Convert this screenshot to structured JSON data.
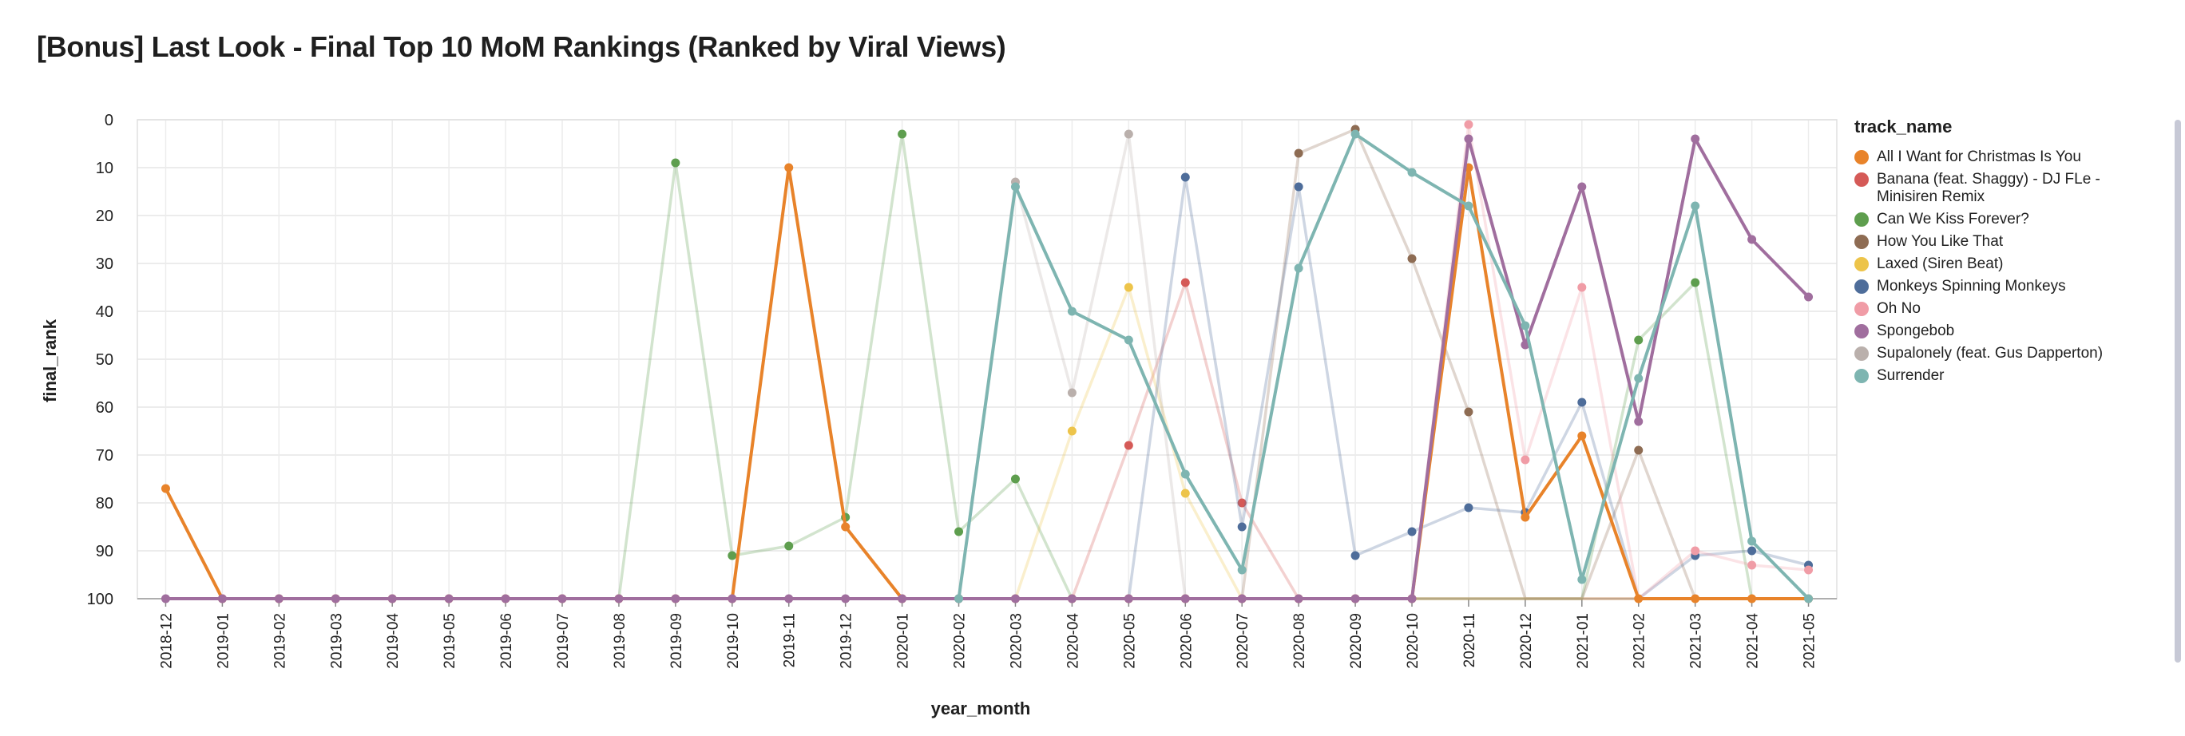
{
  "title": "[Bonus] Last Look - Final Top 10 MoM Rankings (Ranked by Viral Views)",
  "legend_title": "track_name",
  "colors": {
    "All I Want for Christmas Is You": "#E8832A",
    "Banana (feat. Shaggy) - DJ FLe - Minisiren Remix": "#D55A57",
    "Can We Kiss Forever?": "#5E9E4E",
    "How You Like That": "#8E6C53",
    "Laxed (Siren Beat)": "#EDC44A",
    "Monkeys Spinning Monkeys": "#4E6D9A",
    "Oh No": "#F09CA6",
    "Spongebob": "#A06E9E",
    "Supalonely (feat. Gus Dapperton)": "#BAB0AC",
    "Surrender": "#7EB5B1"
  },
  "chart_data": {
    "type": "line",
    "xlabel": "year_month",
    "ylabel": "final_rank",
    "ylim": [
      0,
      100
    ],
    "y_reversed": true,
    "y_ticks": [
      "0",
      "10",
      "20",
      "30",
      "40",
      "50",
      "60",
      "70",
      "80",
      "90",
      "100"
    ],
    "grid": true,
    "legend_position": "right",
    "categories": [
      "2018-12",
      "2019-01",
      "2019-02",
      "2019-03",
      "2019-04",
      "2019-05",
      "2019-06",
      "2019-07",
      "2019-08",
      "2019-09",
      "2019-10",
      "2019-11",
      "2019-12",
      "2020-01",
      "2020-02",
      "2020-03",
      "2020-04",
      "2020-05",
      "2020-06",
      "2020-07",
      "2020-08",
      "2020-09",
      "2020-10",
      "2020-11",
      "2020-12",
      "2021-01",
      "2021-02",
      "2021-03",
      "2021-04",
      "2021-05"
    ],
    "series": [
      {
        "name": "All I Want for Christmas Is You",
        "highlight": true,
        "values": [
          77,
          100,
          100,
          100,
          100,
          100,
          100,
          100,
          100,
          100,
          100,
          10,
          85,
          100,
          100,
          100,
          100,
          100,
          100,
          100,
          100,
          100,
          100,
          10,
          83,
          66,
          100,
          100,
          100,
          100
        ]
      },
      {
        "name": "Banana (feat. Shaggy) - DJ FLe - Minisiren Remix",
        "highlight": false,
        "values": [
          null,
          null,
          null,
          null,
          null,
          null,
          null,
          null,
          null,
          null,
          null,
          null,
          null,
          null,
          null,
          null,
          100,
          68,
          34,
          80,
          100,
          100,
          100,
          100,
          100,
          100,
          100,
          100,
          100,
          100
        ]
      },
      {
        "name": "Can We Kiss Forever?",
        "highlight": false,
        "values": [
          null,
          null,
          null,
          null,
          null,
          null,
          null,
          null,
          100,
          9,
          91,
          89,
          83,
          3,
          86,
          75,
          100,
          100,
          100,
          100,
          100,
          100,
          100,
          100,
          100,
          100,
          46,
          34,
          100,
          100
        ]
      },
      {
        "name": "How You Like That",
        "highlight": false,
        "values": [
          null,
          null,
          null,
          null,
          null,
          null,
          null,
          null,
          null,
          null,
          null,
          null,
          null,
          null,
          null,
          null,
          null,
          null,
          null,
          100,
          7,
          2,
          29,
          61,
          100,
          100,
          69,
          100,
          100,
          100
        ]
      },
      {
        "name": "Laxed (Siren Beat)",
        "highlight": false,
        "values": [
          null,
          null,
          null,
          null,
          null,
          null,
          null,
          null,
          null,
          null,
          null,
          null,
          null,
          null,
          null,
          100,
          65,
          35,
          78,
          100,
          100,
          100,
          100,
          100,
          100,
          100,
          100,
          100,
          100,
          100
        ]
      },
      {
        "name": "Monkeys Spinning Monkeys",
        "highlight": false,
        "values": [
          null,
          null,
          null,
          null,
          null,
          null,
          null,
          null,
          null,
          null,
          null,
          null,
          null,
          null,
          null,
          null,
          null,
          100,
          12,
          85,
          14,
          91,
          86,
          81,
          82,
          59,
          100,
          91,
          90,
          93
        ]
      },
      {
        "name": "Oh No",
        "highlight": false,
        "values": [
          null,
          null,
          null,
          null,
          null,
          null,
          null,
          null,
          null,
          null,
          null,
          null,
          null,
          null,
          null,
          null,
          null,
          null,
          null,
          null,
          100,
          100,
          100,
          1,
          71,
          35,
          100,
          90,
          93,
          94
        ]
      },
      {
        "name": "Spongebob",
        "highlight": true,
        "values": [
          100,
          100,
          100,
          100,
          100,
          100,
          100,
          100,
          100,
          100,
          100,
          100,
          100,
          100,
          100,
          100,
          100,
          100,
          100,
          100,
          100,
          100,
          100,
          4,
          47,
          14,
          63,
          4,
          25,
          37
        ]
      },
      {
        "name": "Supalonely (feat. Gus Dapperton)",
        "highlight": false,
        "values": [
          null,
          null,
          null,
          null,
          null,
          null,
          null,
          null,
          null,
          null,
          null,
          null,
          null,
          null,
          100,
          13,
          57,
          3,
          100,
          100,
          100,
          100,
          100,
          100,
          100,
          100,
          100,
          100,
          100,
          100
        ]
      },
      {
        "name": "Surrender",
        "highlight": true,
        "values": [
          null,
          null,
          null,
          null,
          null,
          null,
          null,
          null,
          null,
          null,
          null,
          null,
          null,
          null,
          100,
          14,
          40,
          46,
          74,
          94,
          31,
          3,
          11,
          18,
          43,
          96,
          54,
          18,
          88,
          100
        ]
      }
    ]
  }
}
